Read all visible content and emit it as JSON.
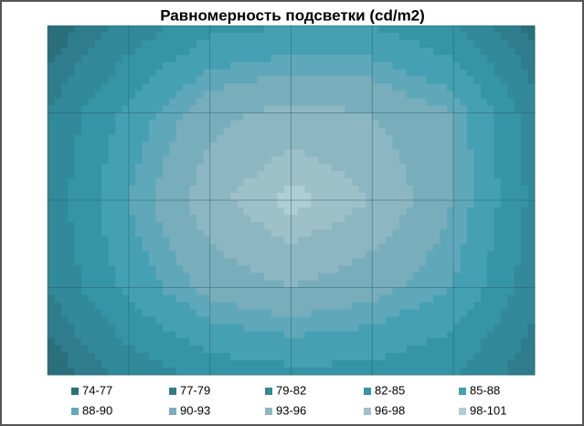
{
  "chart_data": {
    "type": "contour",
    "title": "Равномерность подсветки (cd/m2)",
    "z": [
      [
        75,
        80,
        84,
        85,
        85,
        82,
        76
      ],
      [
        79,
        86,
        92,
        94,
        93,
        90,
        80
      ],
      [
        80,
        88,
        95,
        99,
        96,
        90,
        81
      ],
      [
        79,
        86,
        91,
        93,
        91,
        88,
        80
      ],
      [
        75,
        80,
        83,
        84,
        84,
        82,
        77
      ]
    ],
    "series": [
      {
        "name": "74-77",
        "color": "#2c6f7c"
      },
      {
        "name": "77-79",
        "color": "#2f7d8c"
      },
      {
        "name": "79-82",
        "color": "#318999"
      },
      {
        "name": "82-85",
        "color": "#3594a6"
      },
      {
        "name": "85-88",
        "color": "#45a0b3"
      },
      {
        "name": "88-90",
        "color": "#5fa8ba"
      },
      {
        "name": "90-93",
        "color": "#78adbb"
      },
      {
        "name": "93-96",
        "color": "#8cb6c2"
      },
      {
        "name": "96-98",
        "color": "#9ec0c9"
      },
      {
        "name": "98-101",
        "color": "#b0cdd5"
      }
    ]
  }
}
